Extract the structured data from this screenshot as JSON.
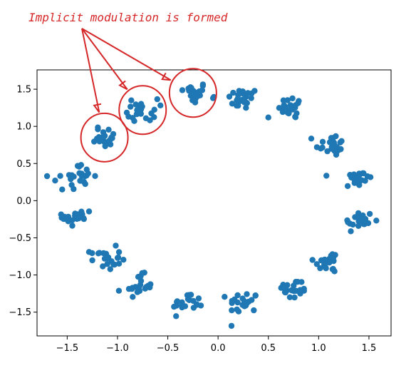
{
  "chart_data": {
    "type": "scatter",
    "title": "",
    "xlabel": "",
    "ylabel": "",
    "xlim": [
      -1.8,
      1.72
    ],
    "ylim": [
      -1.82,
      1.76
    ],
    "xticks": [
      -1.5,
      -1.0,
      -0.5,
      0.0,
      0.5,
      1.0,
      1.5
    ],
    "xtick_labels": [
      "−1.5",
      "−1.0",
      "−0.5",
      "0.0",
      "0.5",
      "1.0",
      "1.5"
    ],
    "yticks": [
      -1.5,
      -1.0,
      -0.5,
      0.0,
      0.5,
      1.0,
      1.5
    ],
    "ytick_labels": [
      "−1.5",
      "−1.0",
      "−0.5",
      "0.0",
      "0.5",
      "1.0",
      "1.5"
    ],
    "grid": false,
    "point_color": "#1f77b4",
    "description": "Noisy points clustered in 16 groups arranged on a ring",
    "clusters": [
      {
        "center": [
          -0.25,
          1.45
        ],
        "n": 22
      },
      {
        "center": [
          0.25,
          1.37
        ],
        "n": 22
      },
      {
        "center": [
          0.75,
          1.25
        ],
        "n": 22
      },
      {
        "center": [
          1.12,
          0.75
        ],
        "n": 22
      },
      {
        "center": [
          1.38,
          0.3
        ],
        "n": 22
      },
      {
        "center": [
          1.4,
          -0.28
        ],
        "n": 22
      },
      {
        "center": [
          1.1,
          -0.82
        ],
        "n": 22
      },
      {
        "center": [
          0.75,
          -1.2
        ],
        "n": 22
      },
      {
        "center": [
          0.25,
          -1.37
        ],
        "n": 22
      },
      {
        "center": [
          -0.3,
          -1.38
        ],
        "n": 22
      },
      {
        "center": [
          -0.8,
          -1.15
        ],
        "n": 22
      },
      {
        "center": [
          -1.12,
          -0.78
        ],
        "n": 22
      },
      {
        "center": [
          -1.4,
          -0.22
        ],
        "n": 22
      },
      {
        "center": [
          -1.38,
          0.33
        ],
        "n": 22
      },
      {
        "center": [
          -1.13,
          0.85
        ],
        "n": 22
      },
      {
        "center": [
          -0.75,
          1.22
        ],
        "n": 22
      }
    ],
    "noise_sd": 0.075,
    "extra_points": [
      [
        -1.7,
        0.33
      ],
      [
        -1.55,
        0.15
      ],
      [
        -1.62,
        0.27
      ],
      [
        0.5,
        1.12
      ],
      [
        -0.05,
        1.38
      ]
    ],
    "highlighted_clusters": [
      [
        -1.13,
        0.85
      ],
      [
        -0.75,
        1.22
      ],
      [
        -0.25,
        1.45
      ]
    ]
  },
  "annotation": {
    "text": "Implicit modulation is formed",
    "color": "#d62728"
  }
}
